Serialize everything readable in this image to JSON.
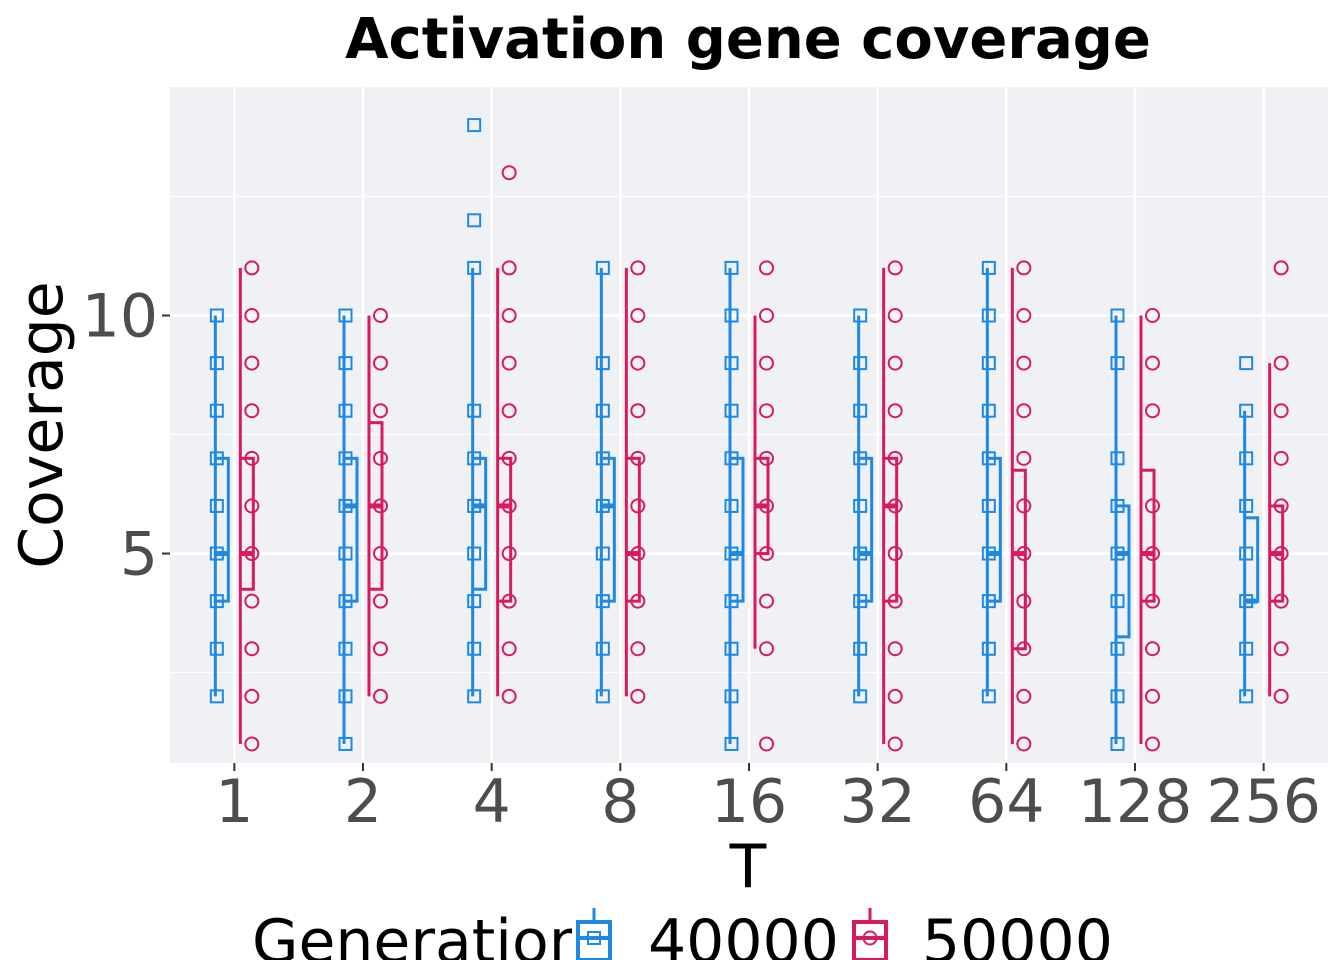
{
  "chart_data": {
    "type": "boxplot",
    "title": "Activation gene coverage",
    "xlabel": "T",
    "ylabel": "Coverage",
    "categories": [
      "1",
      "2",
      "4",
      "8",
      "16",
      "32",
      "64",
      "128",
      "256"
    ],
    "ylim": [
      0.6,
      14.8
    ],
    "yticks": [
      5,
      10
    ],
    "grid": true,
    "legend": {
      "title": "Generation",
      "position": "bottom"
    },
    "series": [
      {
        "name": "40000",
        "color": "#1e88e5",
        "marker": "square",
        "boxes": [
          {
            "whisker_low": 2,
            "q1": 4,
            "median": 5,
            "q3": 7,
            "whisker_high": 10,
            "points": [
              2,
              3,
              4,
              5,
              6,
              7,
              8,
              9,
              10
            ]
          },
          {
            "whisker_low": 1,
            "q1": 4,
            "median": 6,
            "q3": 7,
            "whisker_high": 10,
            "points": [
              1,
              2,
              3,
              4,
              5,
              6,
              7,
              8,
              9,
              10
            ]
          },
          {
            "whisker_low": 2,
            "q1": 4.25,
            "median": 6,
            "q3": 7,
            "whisker_high": 11,
            "points": [
              2,
              3,
              4,
              5,
              6,
              7,
              8,
              11,
              12,
              14
            ]
          },
          {
            "whisker_low": 2,
            "q1": 4,
            "median": 6,
            "q3": 7,
            "whisker_high": 11,
            "points": [
              2,
              3,
              4,
              5,
              6,
              7,
              8,
              9,
              11
            ]
          },
          {
            "whisker_low": 1,
            "q1": 4,
            "median": 5,
            "q3": 7,
            "whisker_high": 11,
            "points": [
              1,
              2,
              3,
              4,
              5,
              6,
              7,
              8,
              9,
              10,
              11
            ]
          },
          {
            "whisker_low": 2,
            "q1": 4,
            "median": 5,
            "q3": 7,
            "whisker_high": 10,
            "points": [
              2,
              3,
              4,
              5,
              6,
              7,
              8,
              9,
              10
            ]
          },
          {
            "whisker_low": 2,
            "q1": 4,
            "median": 5,
            "q3": 7,
            "whisker_high": 11,
            "points": [
              2,
              3,
              4,
              5,
              6,
              7,
              8,
              9,
              10,
              11
            ]
          },
          {
            "whisker_low": 1,
            "q1": 3.25,
            "median": 5,
            "q3": 6,
            "whisker_high": 10,
            "points": [
              1,
              2,
              3,
              4,
              5,
              6,
              7,
              9,
              10
            ]
          },
          {
            "whisker_low": 2,
            "q1": 4,
            "median": 4,
            "q3": 5.75,
            "whisker_high": 8,
            "points": [
              2,
              3,
              4,
              5,
              6,
              7,
              8,
              9
            ]
          }
        ]
      },
      {
        "name": "50000",
        "color": "#d81b60",
        "marker": "circle",
        "boxes": [
          {
            "whisker_low": 1,
            "q1": 4.25,
            "median": 5,
            "q3": 7,
            "whisker_high": 11,
            "points": [
              1,
              2,
              3,
              4,
              5,
              6,
              7,
              8,
              9,
              10,
              11
            ]
          },
          {
            "whisker_low": 2,
            "q1": 4.25,
            "median": 6,
            "q3": 7.75,
            "whisker_high": 10,
            "points": [
              2,
              3,
              4,
              5,
              6,
              7,
              8,
              9,
              10
            ]
          },
          {
            "whisker_low": 2,
            "q1": 4,
            "median": 6,
            "q3": 7,
            "whisker_high": 11,
            "points": [
              2,
              3,
              4,
              5,
              6,
              7,
              8,
              9,
              10,
              11,
              13
            ]
          },
          {
            "whisker_low": 2,
            "q1": 4,
            "median": 5,
            "q3": 7,
            "whisker_high": 11,
            "points": [
              2,
              3,
              4,
              5,
              6,
              7,
              8,
              9,
              10,
              11
            ]
          },
          {
            "whisker_low": 3,
            "q1": 5,
            "median": 6,
            "q3": 7,
            "whisker_high": 10,
            "points": [
              1,
              3,
              4,
              5,
              6,
              7,
              8,
              9,
              10,
              11
            ]
          },
          {
            "whisker_low": 1,
            "q1": 4,
            "median": 6,
            "q3": 7,
            "whisker_high": 11,
            "points": [
              1,
              2,
              3,
              4,
              5,
              6,
              7,
              8,
              9,
              10,
              11
            ]
          },
          {
            "whisker_low": 1,
            "q1": 3,
            "median": 5,
            "q3": 6.75,
            "whisker_high": 11,
            "points": [
              1,
              2,
              3,
              4,
              5,
              6,
              7,
              8,
              9,
              10,
              11
            ]
          },
          {
            "whisker_low": 1,
            "q1": 4,
            "median": 5,
            "q3": 6.75,
            "whisker_high": 10,
            "points": [
              1,
              2,
              3,
              4,
              5,
              6,
              8,
              9,
              10
            ]
          },
          {
            "whisker_low": 2,
            "q1": 4,
            "median": 5,
            "q3": 6,
            "whisker_high": 9,
            "points": [
              2,
              3,
              4,
              5,
              6,
              7,
              8,
              9,
              11
            ]
          }
        ]
      }
    ]
  }
}
